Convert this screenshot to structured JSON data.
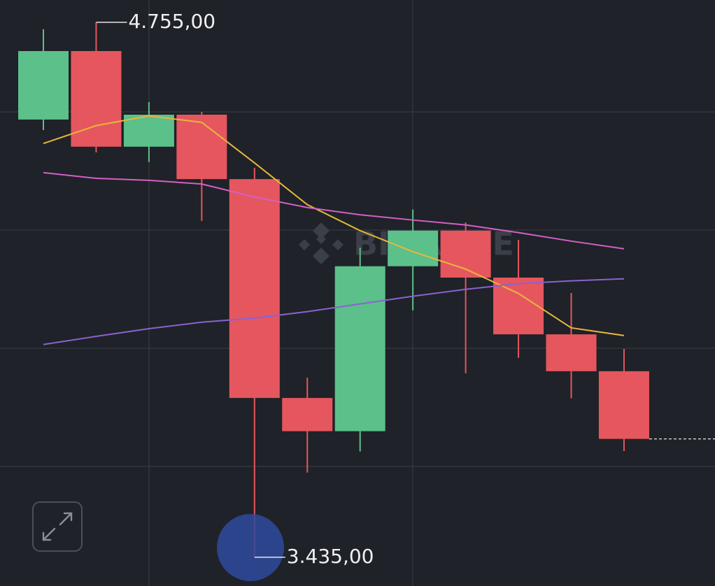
{
  "chart_data": {
    "type": "candlestick",
    "watermark": "BINANCE",
    "up_color": "#5cc08a",
    "down_color": "#e5565f",
    "open": [
      4515,
      4684,
      4448,
      4527,
      4368,
      3828,
      3746,
      4153,
      4241,
      4125,
      3985,
      3894
    ],
    "high": [
      4738,
      4755,
      4558,
      4534,
      4396,
      3878,
      4199,
      4293,
      4261,
      4218,
      4087,
      3949
    ],
    "low": [
      4489,
      4434,
      4410,
      4265,
      3435,
      3644,
      3696,
      4044,
      3889,
      3927,
      3827,
      3697
    ],
    "close": [
      4684,
      4448,
      4527,
      4368,
      3828,
      3746,
      4153,
      4241,
      4125,
      3985,
      3894,
      3727
    ],
    "indicators": [
      {
        "color": "#e8b73a",
        "values": [
          4456,
          4500,
          4524,
          4508,
          4408,
          4305,
          4241,
          4189,
          4146,
          4086,
          4001,
          3982
        ]
      },
      {
        "color": "#d35fc7",
        "values": [
          4384,
          4370,
          4365,
          4356,
          4324,
          4298,
          4280,
          4267,
          4255,
          4236,
          4215,
          4196
        ]
      },
      {
        "color": "#8a62d0",
        "values": [
          3960,
          3980,
          3999,
          4015,
          4025,
          4041,
          4060,
          4079,
          4096,
          4110,
          4117,
          4122
        ]
      }
    ],
    "annotations": [
      {
        "value": 4755,
        "label": "4.755,00"
      },
      {
        "value": 3435,
        "label": "3.435,00"
      }
    ],
    "ylim": [
      3364,
      4810
    ]
  }
}
